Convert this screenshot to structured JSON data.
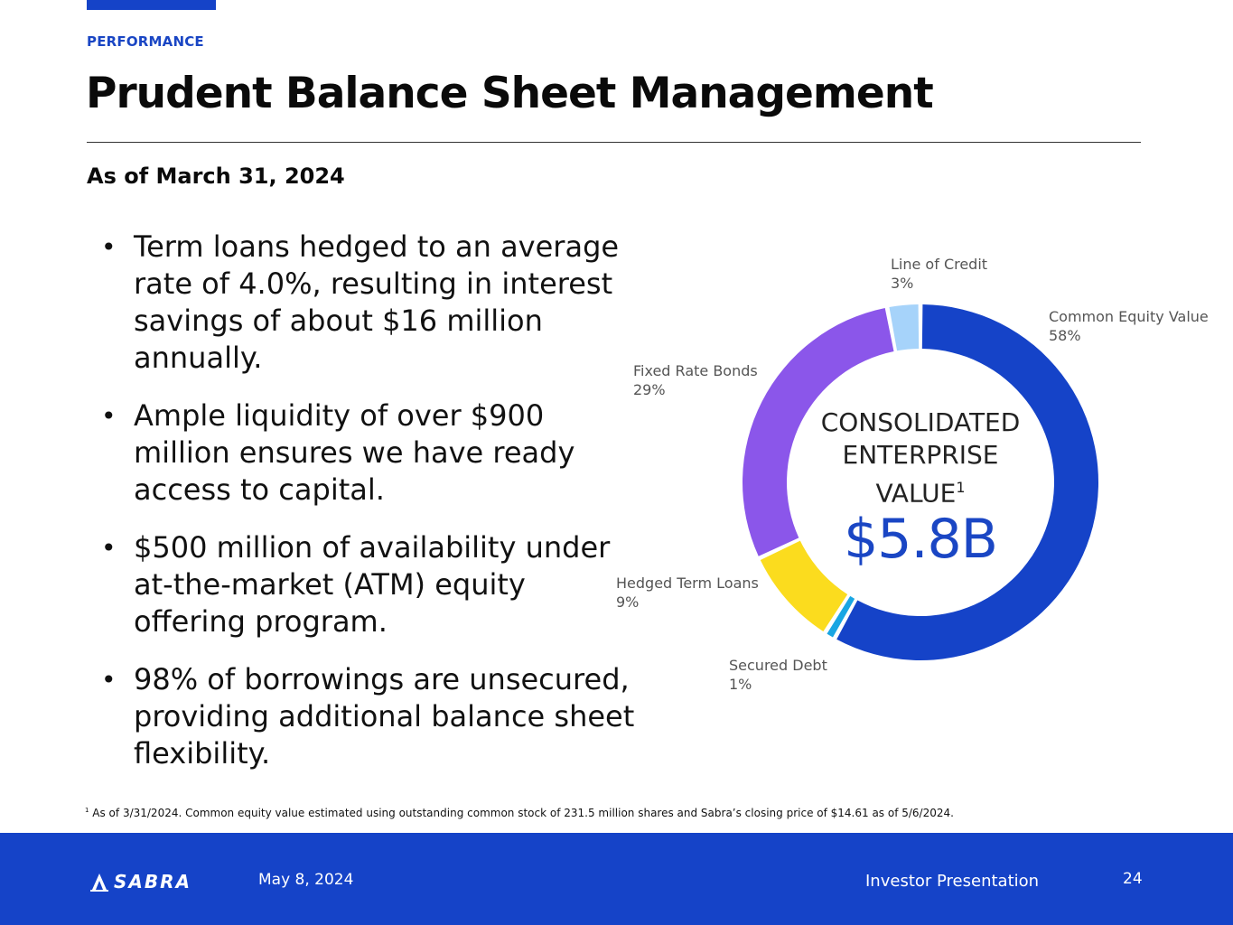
{
  "header": {
    "section_label": "PERFORMANCE",
    "title": "Prudent Balance Sheet Management",
    "subtitle": "As of March 31, 2024"
  },
  "bullets": [
    "Term loans hedged to an average rate of 4.0%, resulting in interest savings of about $16 million annually.",
    "Ample liquidity of over $900 million ensures we have ready access to capital.",
    "$500 million of availability under at-the-market (ATM) equity offering program.",
    "98% of borrowings are unsecured, providing additional balance sheet flexibility."
  ],
  "chart_data": {
    "type": "pie",
    "variant": "donut",
    "center_label": "CONSOLIDATED ENTERPRISE VALUE",
    "center_label_superscript": "1",
    "center_value": "$5.8B",
    "slices": [
      {
        "label": "Common Equity Value",
        "percent_label": "58%",
        "value": 58,
        "color": "#1543c8"
      },
      {
        "label": "Secured Debt",
        "percent_label": "1%",
        "value": 1,
        "color": "#19a6e3"
      },
      {
        "label": "Hedged Term Loans",
        "percent_label": "9%",
        "value": 9,
        "color": "#fbdc1e"
      },
      {
        "label": "Fixed Rate Bonds",
        "percent_label": "29%",
        "value": 29,
        "color": "#8b56ea"
      },
      {
        "label": "Line of Credit",
        "percent_label": "3%",
        "value": 3,
        "color": "#a6d3fa"
      }
    ]
  },
  "footnote": {
    "marker": "1",
    "text": " As of 3/31/2024. Common equity value estimated using outstanding common stock of 231.5 million shares and Sabra’s closing price of $14.61 as of 5/6/2024."
  },
  "footer": {
    "logo_text": "SABRA",
    "date": "May 8, 2024",
    "title": "Investor Presentation",
    "page_number": "24",
    "background_color": "#1543c8"
  }
}
